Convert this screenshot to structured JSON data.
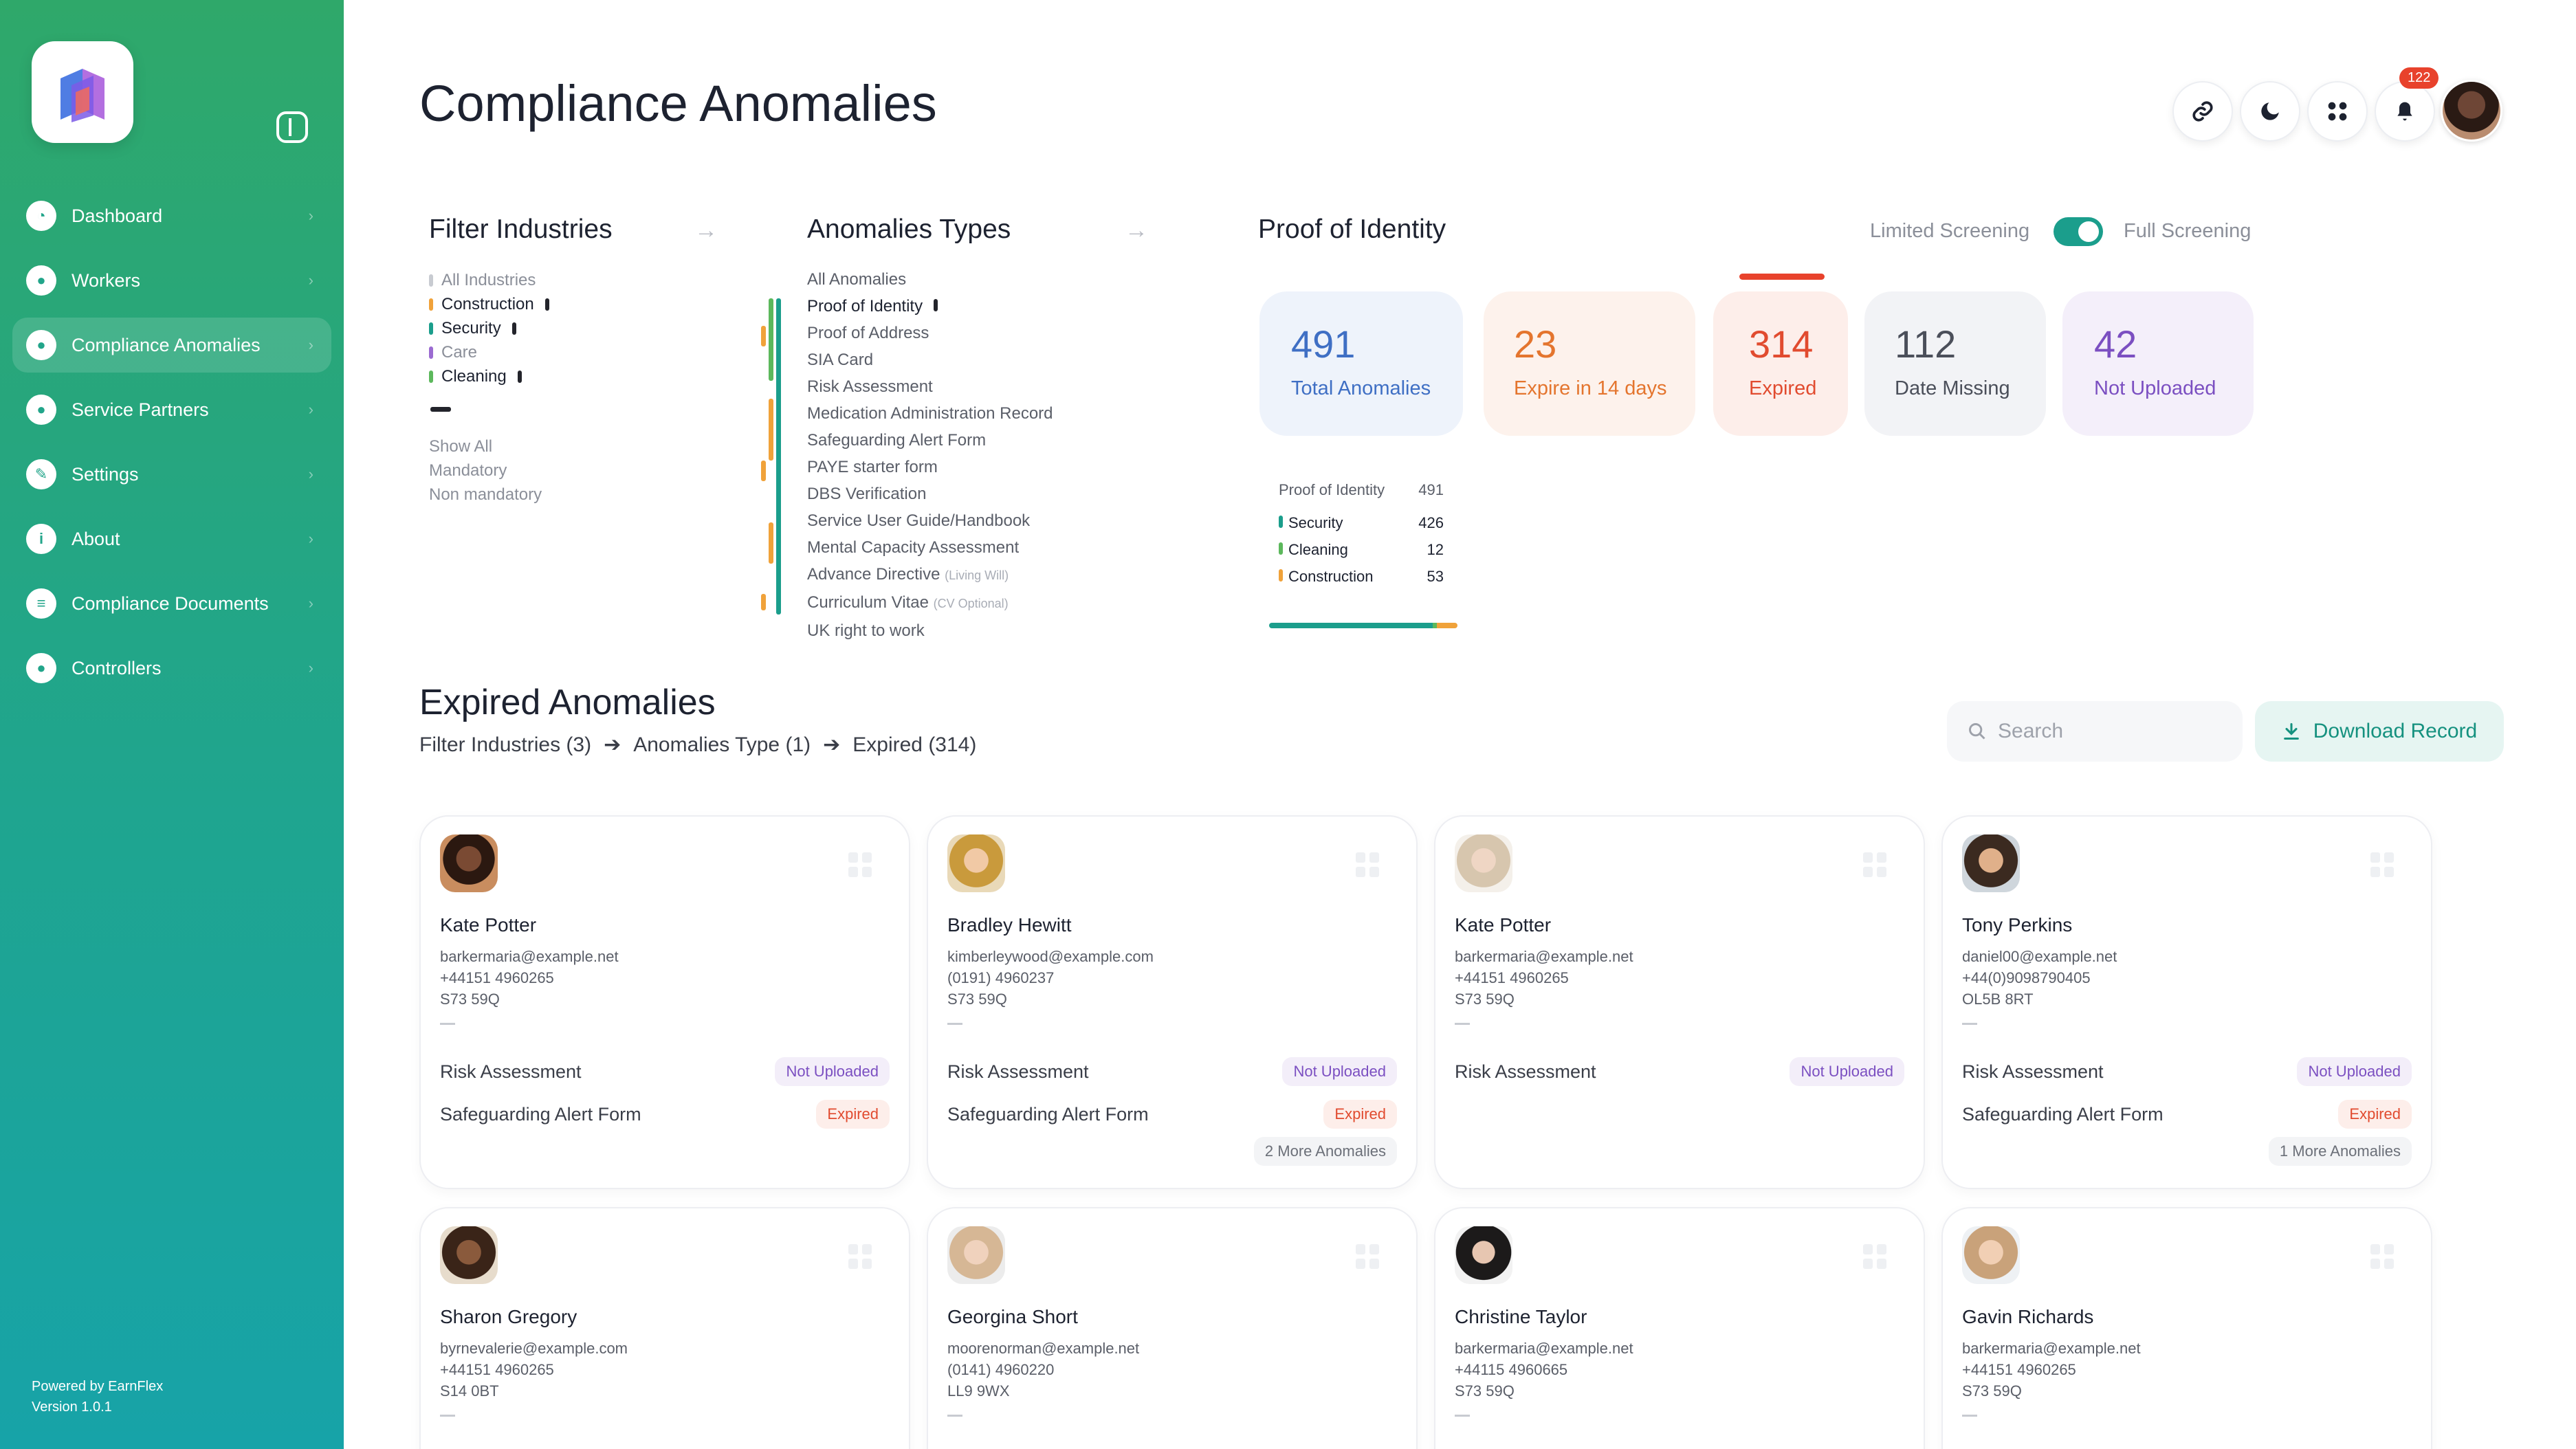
{
  "sidebar": {
    "items": [
      {
        "label": "Dashboard",
        "icon": "pie-chart-icon"
      },
      {
        "label": "Workers",
        "icon": "user-icon"
      },
      {
        "label": "Compliance Anomalies",
        "icon": "user-shield-icon"
      },
      {
        "label": "Service Partners",
        "icon": "users-icon"
      },
      {
        "label": "Settings",
        "icon": "wrench-icon"
      },
      {
        "label": "About",
        "icon": "info-icon"
      },
      {
        "label": "Compliance Documents",
        "icon": "document-icon"
      },
      {
        "label": "Controllers",
        "icon": "user-icon"
      }
    ],
    "powered_by": "Powered by EarnFlex",
    "version": "Version 1.0.1"
  },
  "header": {
    "title": "Compliance Anomalies",
    "notification_count": "122"
  },
  "filter_industries": {
    "title": "Filter Industries",
    "items": [
      "All Industries",
      "Construction",
      "Security",
      "Care",
      "Cleaning"
    ],
    "modes": [
      "Show All",
      "Mandatory",
      "Non mandatory"
    ]
  },
  "anomaly_types": {
    "title": "Anomalies Types",
    "items": [
      "All Anomalies",
      "Proof of Identity",
      "Proof of Address",
      "SIA Card",
      "Risk Assessment",
      "Medication Administration Record",
      "Safeguarding Alert Form",
      "PAYE starter form",
      "DBS Verification",
      "Service User Guide/Handbook",
      "Mental Capacity Assessment",
      "Advance Directive",
      "Curriculum Vitae",
      "UK right to work"
    ],
    "advance_note": "(Living Will)",
    "cv_note": "(CV Optional)"
  },
  "proof_of_identity": {
    "title": "Proof of Identity",
    "toggle_left": "Limited Screening",
    "toggle_right": "Full Screening",
    "stats": [
      {
        "value": "491",
        "label": "Total Anomalies"
      },
      {
        "value": "23",
        "label": "Expire in 14 days"
      },
      {
        "value": "314",
        "label": "Expired"
      },
      {
        "value": "112",
        "label": "Date Missing"
      },
      {
        "value": "42",
        "label": "Not Uploaded"
      }
    ],
    "breakdown_title": "Proof of Identity",
    "breakdown_total": "491",
    "breakdown": [
      {
        "label": "Security",
        "value": "426"
      },
      {
        "label": "Cleaning",
        "value": "12"
      },
      {
        "label": "Construction",
        "value": "53"
      }
    ]
  },
  "expired": {
    "title": "Expired Anomalies",
    "crumb1": "Filter Industries (3)",
    "crumb2": "Anomalies Type (1)",
    "crumb3": "Expired (314)",
    "search_placeholder": "Search",
    "download_label": "Download Record"
  },
  "cards": [
    {
      "name": "Kate Potter",
      "email": "barkermaria@example.net",
      "phone": "+44151 4960265",
      "postcode": "S73 59Q",
      "doc1": "Risk Assessment",
      "status1": "Not Uploaded",
      "doc2": "Safeguarding Alert Form",
      "status2": "Expired",
      "more": ""
    },
    {
      "name": "Bradley Hewitt",
      "email": "kimberleywood@example.com",
      "phone": "(0191) 4960237",
      "postcode": "S73 59Q",
      "doc1": "Risk Assessment",
      "status1": "Not Uploaded",
      "doc2": "Safeguarding Alert Form",
      "status2": "Expired",
      "more": "2 More Anomalies"
    },
    {
      "name": "Kate Potter",
      "email": "barkermaria@example.net",
      "phone": "+44151 4960265",
      "postcode": "S73 59Q",
      "doc1": "Risk Assessment",
      "status1": "Not Uploaded",
      "doc2": "",
      "status2": "",
      "more": ""
    },
    {
      "name": "Tony Perkins",
      "email": "daniel00@example.net",
      "phone": "+44(0)9098790405",
      "postcode": "OL5B 8RT",
      "doc1": "Risk Assessment",
      "status1": "Not Uploaded",
      "doc2": "Safeguarding Alert Form",
      "status2": "Expired",
      "more": "1 More Anomalies"
    },
    {
      "name": "Sharon Gregory",
      "email": "byrnevalerie@example.com",
      "phone": "+44151 4960265",
      "postcode": "S14 0BT"
    },
    {
      "name": "Georgina Short",
      "email": "moorenorman@example.net",
      "phone": "(0141) 4960220",
      "postcode": "LL9 9WX"
    },
    {
      "name": "Christine Taylor",
      "email": "barkermaria@example.net",
      "phone": "+44115 4960665",
      "postcode": "S73 59Q"
    },
    {
      "name": "Gavin Richards",
      "email": "barkermaria@example.net",
      "phone": "+44151 4960265",
      "postcode": "S73 59Q"
    }
  ],
  "colors": {
    "accent": "#1b9e8c",
    "expired": "#e14b2f",
    "not_uploaded": "#7b4fc1",
    "security": "#1b9e8c",
    "cleaning": "#5cb85c",
    "construction": "#f0a23a",
    "care": "#9b6bd1"
  }
}
